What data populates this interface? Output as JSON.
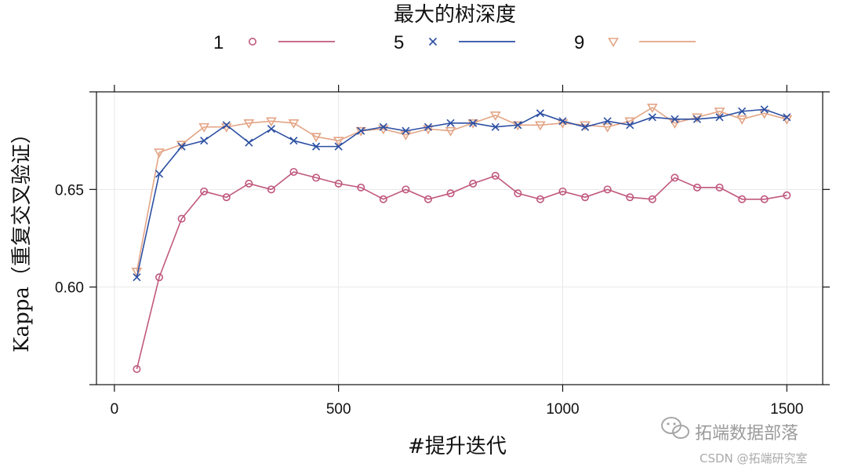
{
  "chart_data": {
    "type": "line",
    "title": "最大的树深度",
    "xlabel": "#提升迭代",
    "ylabel": "Kappa（重复交叉验证）",
    "xlim": [
      -40,
      1580
    ],
    "ylim": [
      0.55,
      0.7
    ],
    "xticks": [
      0,
      500,
      1000,
      1500
    ],
    "yticks": [
      0.6,
      0.65
    ],
    "ytick_labels": [
      "0.60",
      "0.65"
    ],
    "grid": true,
    "legend_position": "top",
    "x": [
      50,
      100,
      150,
      200,
      250,
      300,
      350,
      400,
      450,
      500,
      550,
      600,
      650,
      700,
      750,
      800,
      850,
      900,
      950,
      1000,
      1050,
      1100,
      1150,
      1200,
      1250,
      1300,
      1350,
      1400,
      1450,
      1500
    ],
    "series": [
      {
        "name": "1",
        "marker": "circle",
        "color": "#c0587e",
        "values": [
          0.558,
          0.605,
          0.635,
          0.649,
          0.646,
          0.653,
          0.65,
          0.659,
          0.656,
          0.653,
          0.651,
          0.645,
          0.65,
          0.645,
          0.648,
          0.653,
          0.657,
          0.648,
          0.645,
          0.649,
          0.646,
          0.65,
          0.646,
          0.645,
          0.656,
          0.651,
          0.651,
          0.645,
          0.645,
          0.647
        ]
      },
      {
        "name": "5",
        "marker": "x",
        "color": "#2c4fa3",
        "values": [
          0.605,
          0.658,
          0.672,
          0.675,
          0.683,
          0.674,
          0.681,
          0.675,
          0.672,
          0.672,
          0.68,
          0.682,
          0.68,
          0.682,
          0.684,
          0.684,
          0.682,
          0.683,
          0.689,
          0.685,
          0.682,
          0.685,
          0.683,
          0.687,
          0.686,
          0.686,
          0.687,
          0.69,
          0.691,
          0.687
        ]
      },
      {
        "name": "9",
        "marker": "triangle-down",
        "color": "#e3a586",
        "values": [
          0.608,
          0.669,
          0.673,
          0.682,
          0.682,
          0.684,
          0.685,
          0.684,
          0.677,
          0.675,
          0.68,
          0.681,
          0.678,
          0.681,
          0.68,
          0.684,
          0.688,
          0.683,
          0.683,
          0.684,
          0.683,
          0.682,
          0.685,
          0.692,
          0.684,
          0.687,
          0.69,
          0.686,
          0.689,
          0.686
        ]
      }
    ]
  },
  "watermark": {
    "brand": "拓端数据部落",
    "credit": "CSDN @拓端研究室"
  },
  "icons": {
    "watermark_icon": "wechat-icon"
  }
}
